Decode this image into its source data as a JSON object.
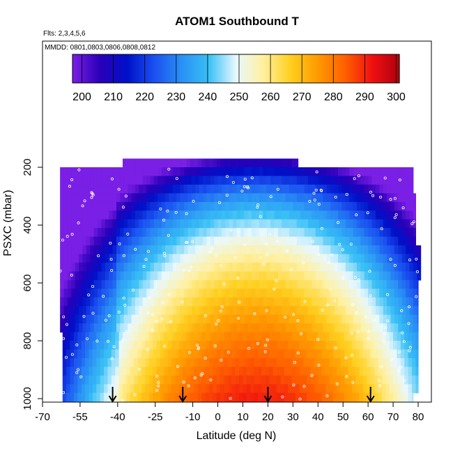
{
  "chart_data": {
    "type": "heatmap",
    "title": "ATOM1 Southbound T",
    "note_flights": "Flts: 2,3,4,5,6",
    "note_dates": "MMDD: 0801,0803,0806,0808,0812",
    "xlabel": "Latitude (deg N)",
    "ylabel": "PSXC (mbar)",
    "xlim": [
      -70,
      80
    ],
    "ylim": [
      1000,
      0
    ],
    "x_ticks": [
      -70,
      -55,
      -40,
      -25,
      -10,
      0,
      10,
      20,
      30,
      40,
      50,
      60,
      70,
      80
    ],
    "x_tick_labels": [
      "-70",
      "-55",
      "-40",
      "-25",
      "-10",
      "0",
      "10",
      "20",
      "30",
      "40",
      "50",
      "60",
      "70",
      "80"
    ],
    "y_ticks": [
      200,
      400,
      600,
      800,
      1000
    ],
    "y_tick_labels": [
      "200",
      "400",
      "600",
      "800",
      "1000"
    ],
    "colorbar": {
      "min": 197,
      "max": 301,
      "ticks": [
        200,
        210,
        220,
        230,
        240,
        250,
        260,
        270,
        280,
        290,
        300
      ],
      "tick_labels": [
        "200",
        "210",
        "220",
        "230",
        "240",
        "250",
        "260",
        "270",
        "280",
        "290",
        "300"
      ],
      "colors": [
        "#7a1fe6",
        "#2a00b8",
        "#0010c8",
        "#1a50f0",
        "#2a90f5",
        "#38c0f5",
        "#e8f8ff",
        "#fff0a0",
        "#ffd020",
        "#ff9a00",
        "#ff6000",
        "#f01010",
        "#b00010"
      ]
    },
    "pressure_levels": [
      185,
      215,
      245,
      275,
      305,
      335,
      365,
      395,
      425,
      455,
      485,
      515,
      545,
      575,
      605,
      635,
      665,
      695,
      725,
      755,
      785,
      815,
      845,
      875,
      905,
      935,
      965,
      995
    ],
    "latitude_extent_by_level": [
      [
        -38,
        32
      ],
      [
        -63,
        78
      ],
      [
        -63,
        78
      ],
      [
        -63,
        78
      ],
      [
        -63,
        79
      ],
      [
        -63,
        79
      ],
      [
        -63,
        79
      ],
      [
        -63,
        79
      ],
      [
        -63,
        79
      ],
      [
        -63,
        79
      ],
      [
        -63,
        81
      ],
      [
        -63,
        81
      ],
      [
        -63,
        81
      ],
      [
        -63,
        81
      ],
      [
        -63,
        80
      ],
      [
        -63,
        80
      ],
      [
        -63,
        80
      ],
      [
        -63,
        80
      ],
      [
        -63,
        80
      ],
      [
        -63,
        80
      ],
      [
        -62,
        80
      ],
      [
        -62,
        80
      ],
      [
        -62,
        80
      ],
      [
        -62,
        80
      ],
      [
        -62,
        80
      ],
      [
        -62,
        80
      ],
      [
        -62,
        80
      ],
      [
        -62,
        78
      ]
    ],
    "temperature_model": {
      "surface_temperature_K": 291,
      "surface_peak_latitude": 15,
      "lapse_K_per_1000m": 6.5
    },
    "arrows_latitude": [
      -42,
      -14,
      20,
      61
    ]
  }
}
